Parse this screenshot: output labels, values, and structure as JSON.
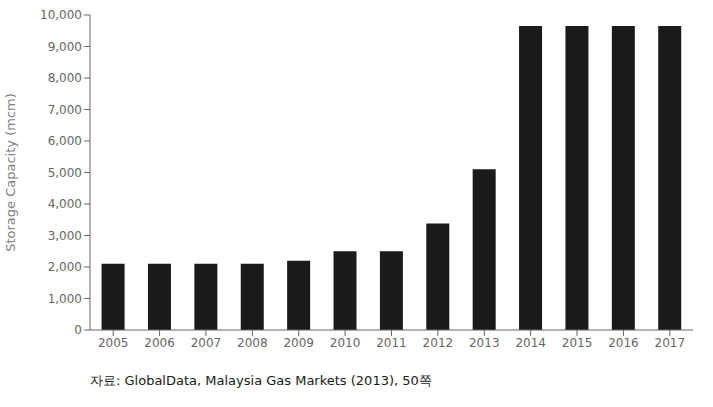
{
  "chart_data": {
    "type": "bar",
    "categories": [
      "2005",
      "2006",
      "2007",
      "2008",
      "2009",
      "2010",
      "2011",
      "2012",
      "2013",
      "2014",
      "2015",
      "2016",
      "2017"
    ],
    "values": [
      2100,
      2100,
      2100,
      2100,
      2200,
      2500,
      2500,
      3380,
      5100,
      9650,
      9650,
      9650,
      9650
    ],
    "color": "#1a1a1a",
    "ylabel": "Storage Capacity (mcm)",
    "ylim": [
      0,
      10000
    ],
    "yticks": [
      0,
      {
        "value": 1000,
        "label": "1,000"
      },
      {
        "value": 2000,
        "label": "2,000"
      },
      {
        "value": 3000,
        "label": "3,000"
      },
      {
        "value": 4000,
        "label": "4,000"
      },
      {
        "value": 5000,
        "label": "5,000"
      },
      {
        "value": 6000,
        "label": "6,000"
      },
      {
        "value": 7000,
        "label": "7,000"
      },
      {
        "value": 8000,
        "label": "8,000"
      },
      {
        "value": 9000,
        "label": "9,000"
      },
      {
        "value": 10000,
        "label": "10,000"
      }
    ],
    "caption": "자료: GlobalData, Malaysia Gas Markets (2013), 50쪽",
    "grid": false
  }
}
